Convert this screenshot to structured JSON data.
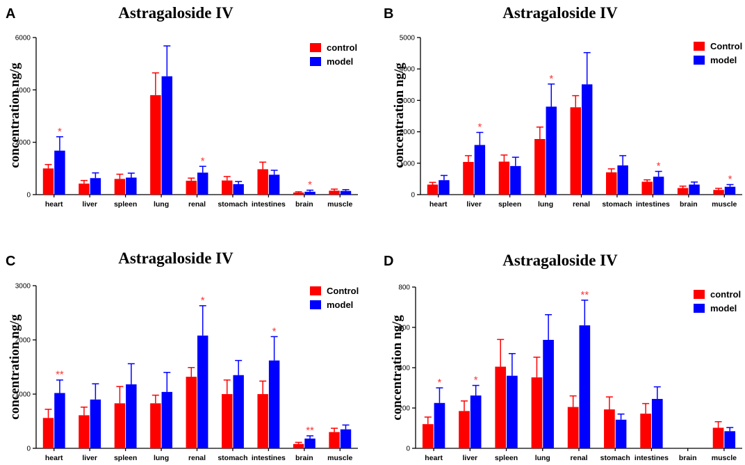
{
  "chart_data": [
    {
      "panel": "A",
      "type": "bar",
      "title": "Astragaloside IV",
      "ylabel": "concentration ng/g",
      "xlabel": "",
      "ylim": [
        0,
        6000
      ],
      "yticks": [
        0,
        2000,
        4000,
        6000
      ],
      "categories": [
        "heart",
        "liver",
        "spleen",
        "lung",
        "renal",
        "stomach",
        "intestines",
        "brain",
        "muscle"
      ],
      "series": [
        {
          "name": "control",
          "color": "#ff0000",
          "values": [
            1000,
            420,
            600,
            3800,
            530,
            540,
            970,
            80,
            150
          ],
          "errors": [
            150,
            120,
            180,
            850,
            100,
            150,
            270,
            30,
            60
          ]
        },
        {
          "name": "model",
          "color": "#0000ff",
          "values": [
            1680,
            630,
            650,
            4520,
            840,
            400,
            760,
            110,
            140
          ],
          "errors": [
            530,
            200,
            170,
            1160,
            240,
            100,
            170,
            60,
            50
          ]
        }
      ],
      "significance": [
        {
          "category": "heart",
          "mark": "*"
        },
        {
          "category": "renal",
          "mark": "*"
        },
        {
          "category": "brain",
          "mark": "*"
        }
      ],
      "legend_position": "top-right"
    },
    {
      "panel": "B",
      "type": "bar",
      "title": "Astragaloside IV",
      "ylabel": "concentration ng/g",
      "xlabel": "",
      "ylim": [
        0,
        5000
      ],
      "yticks": [
        0,
        1000,
        2000,
        3000,
        4000,
        5000
      ],
      "categories": [
        "heart",
        "liver",
        "spleen",
        "lung",
        "renal",
        "stomach",
        "intestines",
        "brain",
        "muscle"
      ],
      "series": [
        {
          "name": "Control",
          "color": "#ff0000",
          "values": [
            320,
            1040,
            1050,
            1770,
            2780,
            710,
            410,
            210,
            150
          ],
          "errors": [
            70,
            200,
            210,
            380,
            370,
            110,
            60,
            60,
            50
          ]
        },
        {
          "name": "model",
          "color": "#0000ff",
          "values": [
            460,
            1580,
            910,
            2800,
            3510,
            930,
            570,
            320,
            250
          ],
          "errors": [
            150,
            400,
            280,
            720,
            1010,
            310,
            170,
            80,
            70
          ]
        }
      ],
      "significance": [
        {
          "category": "liver",
          "mark": "*"
        },
        {
          "category": "lung",
          "mark": "*"
        },
        {
          "category": "intestines",
          "mark": "*"
        },
        {
          "category": "muscle",
          "mark": "*"
        }
      ],
      "legend_position": "top-right"
    },
    {
      "panel": "C",
      "type": "bar",
      "title": "Astragaloside IV",
      "ylabel": "concentration ng/g",
      "xlabel": "",
      "ylim": [
        0,
        3000
      ],
      "yticks": [
        0,
        1000,
        2000,
        3000
      ],
      "categories": [
        "heart",
        "liver",
        "spleen",
        "lung",
        "renal",
        "stomach",
        "intestines",
        "brain",
        "muscle"
      ],
      "series": [
        {
          "name": "Control",
          "color": "#ff0000",
          "values": [
            560,
            610,
            830,
            830,
            1320,
            1000,
            1000,
            80,
            300
          ],
          "errors": [
            160,
            150,
            310,
            150,
            170,
            260,
            240,
            30,
            70
          ]
        },
        {
          "name": "model",
          "color": "#0000ff",
          "values": [
            1020,
            900,
            1180,
            1040,
            2080,
            1350,
            1620,
            180,
            350
          ],
          "errors": [
            240,
            290,
            380,
            360,
            550,
            270,
            440,
            50,
            80
          ]
        }
      ],
      "significance": [
        {
          "category": "heart",
          "mark": "**"
        },
        {
          "category": "renal",
          "mark": "*"
        },
        {
          "category": "intestines",
          "mark": "*"
        },
        {
          "category": "brain",
          "mark": "**"
        }
      ],
      "legend_position": "top-right"
    },
    {
      "panel": "D",
      "type": "bar",
      "title": "Astragaloside IV",
      "ylabel": "concentration ng/g",
      "xlabel": "",
      "ylim": [
        0,
        800
      ],
      "yticks": [
        0,
        200,
        400,
        600,
        800
      ],
      "categories": [
        "heart",
        "liver",
        "spleen",
        "lung",
        "renal",
        "stomach",
        "intestines",
        "brain",
        "muscle"
      ],
      "series": [
        {
          "name": "control",
          "color": "#ff0000",
          "values": [
            120,
            185,
            405,
            352,
            205,
            193,
            172,
            0,
            102
          ],
          "errors": [
            35,
            50,
            135,
            100,
            55,
            62,
            50,
            0,
            30
          ]
        },
        {
          "name": "model",
          "color": "#0000ff",
          "values": [
            225,
            262,
            360,
            538,
            610,
            142,
            245,
            0,
            85
          ],
          "errors": [
            75,
            50,
            110,
            125,
            125,
            28,
            60,
            0,
            18
          ]
        }
      ],
      "significance": [
        {
          "category": "heart",
          "mark": "*"
        },
        {
          "category": "liver",
          "mark": "*"
        },
        {
          "category": "renal",
          "mark": "**"
        }
      ],
      "legend_position": "top-right"
    }
  ]
}
